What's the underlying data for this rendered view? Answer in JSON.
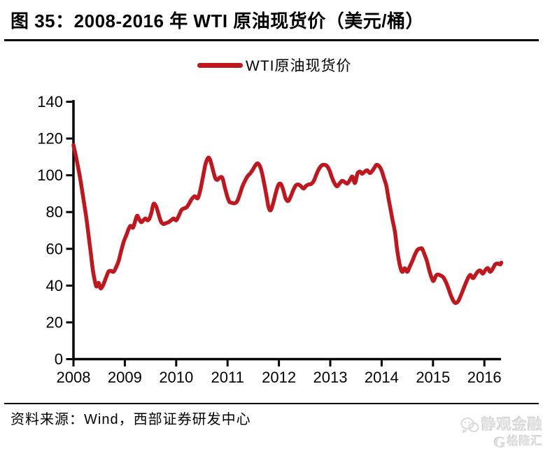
{
  "header": {
    "title": "图 35：2008-2016 年 WTI 原油现货价（美元/桶）"
  },
  "legend": {
    "series_label": "WTI原油现货价",
    "swatch_color": "#C0161E"
  },
  "footer": {
    "source": "资料来源：Wind，西部证券研发中心"
  },
  "watermark": {
    "brand": "静观金融",
    "logo_letter": "G",
    "platform": "格隆汇"
  },
  "chart_data": {
    "type": "line",
    "title": "2008-2016 年 WTI 原油现货价（美元/桶）",
    "xlabel": "",
    "ylabel": "",
    "unit": "美元/桶",
    "grid": false,
    "legend_position": "top-center",
    "x_ticks": [
      2008,
      2009,
      2010,
      2011,
      2012,
      2013,
      2014,
      2015,
      2016
    ],
    "y_ticks": [
      0,
      20,
      40,
      60,
      80,
      100,
      120,
      140
    ],
    "ylim": [
      0,
      140
    ],
    "xlim": [
      2008,
      2016.4
    ],
    "axis_color": "#000000",
    "series": [
      {
        "name": "WTI原油现货价",
        "color": "#C0161E",
        "points": [
          [
            2008.0,
            116.5
          ],
          [
            2008.05,
            110
          ],
          [
            2008.1,
            103
          ],
          [
            2008.15,
            95
          ],
          [
            2008.2,
            86
          ],
          [
            2008.25,
            77
          ],
          [
            2008.3,
            66
          ],
          [
            2008.34,
            57
          ],
          [
            2008.38,
            48
          ],
          [
            2008.42,
            42
          ],
          [
            2008.45,
            39.5
          ],
          [
            2008.49,
            41.5
          ],
          [
            2008.53,
            38.5
          ],
          [
            2008.58,
            40.5
          ],
          [
            2008.63,
            44
          ],
          [
            2008.68,
            47.5
          ],
          [
            2008.73,
            48
          ],
          [
            2008.78,
            47.5
          ],
          [
            2008.83,
            50
          ],
          [
            2008.88,
            53.5
          ],
          [
            2008.93,
            59
          ],
          [
            2008.98,
            64
          ],
          [
            2009.03,
            67.5
          ],
          [
            2009.07,
            70.5
          ],
          [
            2009.11,
            72.5
          ],
          [
            2009.16,
            71.5
          ],
          [
            2009.2,
            75
          ],
          [
            2009.24,
            78
          ],
          [
            2009.28,
            76
          ],
          [
            2009.32,
            74.5
          ],
          [
            2009.36,
            75.5
          ],
          [
            2009.4,
            76.5
          ],
          [
            2009.44,
            75.5
          ],
          [
            2009.48,
            76.5
          ],
          [
            2009.52,
            80
          ],
          [
            2009.56,
            84.5
          ],
          [
            2009.61,
            83
          ],
          [
            2009.65,
            79.5
          ],
          [
            2009.7,
            75
          ],
          [
            2009.75,
            73.5
          ],
          [
            2009.8,
            74
          ],
          [
            2009.85,
            74.5
          ],
          [
            2009.9,
            75.5
          ],
          [
            2009.95,
            76.5
          ],
          [
            2010.0,
            75.5
          ],
          [
            2010.05,
            78
          ],
          [
            2010.1,
            81
          ],
          [
            2010.15,
            82
          ],
          [
            2010.2,
            82.5
          ],
          [
            2010.25,
            84.5
          ],
          [
            2010.3,
            87
          ],
          [
            2010.36,
            88.6
          ],
          [
            2010.42,
            87.5
          ],
          [
            2010.47,
            92
          ],
          [
            2010.52,
            99
          ],
          [
            2010.57,
            106
          ],
          [
            2010.62,
            109.5
          ],
          [
            2010.66,
            108.5
          ],
          [
            2010.71,
            103.5
          ],
          [
            2010.76,
            98.5
          ],
          [
            2010.8,
            97.5
          ],
          [
            2010.85,
            98.8
          ],
          [
            2010.9,
            98.5
          ],
          [
            2010.95,
            93
          ],
          [
            2011.0,
            88
          ],
          [
            2011.04,
            85.5
          ],
          [
            2011.09,
            85
          ],
          [
            2011.14,
            84.8
          ],
          [
            2011.19,
            86
          ],
          [
            2011.24,
            89.8
          ],
          [
            2011.29,
            94
          ],
          [
            2011.34,
            97
          ],
          [
            2011.39,
            99.5
          ],
          [
            2011.44,
            101
          ],
          [
            2011.49,
            103
          ],
          [
            2011.54,
            105.3
          ],
          [
            2011.58,
            106.5
          ],
          [
            2011.62,
            105.5
          ],
          [
            2011.66,
            102.5
          ],
          [
            2011.71,
            96
          ],
          [
            2011.76,
            88.5
          ],
          [
            2011.8,
            82.5
          ],
          [
            2011.84,
            81
          ],
          [
            2011.89,
            85
          ],
          [
            2011.94,
            90.5
          ],
          [
            2011.99,
            94.8
          ],
          [
            2012.04,
            95.2
          ],
          [
            2012.09,
            91.5
          ],
          [
            2012.13,
            87.5
          ],
          [
            2012.18,
            86
          ],
          [
            2012.23,
            88.5
          ],
          [
            2012.28,
            92
          ],
          [
            2012.33,
            94.5
          ],
          [
            2012.38,
            95
          ],
          [
            2012.43,
            94
          ],
          [
            2012.48,
            92.8
          ],
          [
            2012.53,
            94.3
          ],
          [
            2012.58,
            95
          ],
          [
            2012.63,
            95.3
          ],
          [
            2012.68,
            97
          ],
          [
            2012.73,
            100.5
          ],
          [
            2012.78,
            103.5
          ],
          [
            2012.83,
            105.3
          ],
          [
            2012.88,
            105.7
          ],
          [
            2012.93,
            105.2
          ],
          [
            2012.98,
            103
          ],
          [
            2013.03,
            99
          ],
          [
            2013.08,
            95.8
          ],
          [
            2013.13,
            94
          ],
          [
            2013.18,
            95.5
          ],
          [
            2013.23,
            97
          ],
          [
            2013.28,
            96.3
          ],
          [
            2013.33,
            95.5
          ],
          [
            2013.38,
            97.3
          ],
          [
            2013.43,
            99.3
          ],
          [
            2013.48,
            95.8
          ],
          [
            2013.53,
            101
          ],
          [
            2013.58,
            102
          ],
          [
            2013.62,
            100.8
          ],
          [
            2013.67,
            102
          ],
          [
            2013.72,
            102.7
          ],
          [
            2013.77,
            101.2
          ],
          [
            2013.82,
            102.5
          ],
          [
            2013.87,
            104.6
          ],
          [
            2013.9,
            105.7
          ],
          [
            2013.95,
            105
          ],
          [
            2014.0,
            102.5
          ],
          [
            2014.05,
            98
          ],
          [
            2014.09,
            94.5
          ],
          [
            2014.13,
            88
          ],
          [
            2014.17,
            82
          ],
          [
            2014.21,
            76
          ],
          [
            2014.26,
            69
          ],
          [
            2014.3,
            60
          ],
          [
            2014.34,
            53
          ],
          [
            2014.38,
            48.5
          ],
          [
            2014.41,
            47.5
          ],
          [
            2014.45,
            49.4
          ],
          [
            2014.5,
            47.5
          ],
          [
            2014.55,
            50.5
          ],
          [
            2014.6,
            53.5
          ],
          [
            2014.65,
            57
          ],
          [
            2014.7,
            59.5
          ],
          [
            2014.75,
            60.2
          ],
          [
            2014.79,
            60
          ],
          [
            2014.84,
            56.5
          ],
          [
            2014.88,
            53.5
          ],
          [
            2014.93,
            48
          ],
          [
            2014.97,
            44.5
          ],
          [
            2015.01,
            42.5
          ],
          [
            2015.06,
            45.5
          ],
          [
            2015.1,
            46
          ],
          [
            2015.15,
            45.5
          ],
          [
            2015.2,
            44.5
          ],
          [
            2015.25,
            42
          ],
          [
            2015.3,
            38.5
          ],
          [
            2015.35,
            34.5
          ],
          [
            2015.4,
            31.5
          ],
          [
            2015.44,
            30.5
          ],
          [
            2015.49,
            31.5
          ],
          [
            2015.54,
            34.5
          ],
          [
            2015.59,
            38
          ],
          [
            2015.64,
            41.5
          ],
          [
            2015.69,
            44.5
          ],
          [
            2015.73,
            45.8
          ],
          [
            2015.78,
            44
          ],
          [
            2015.83,
            46
          ],
          [
            2015.88,
            47.8
          ],
          [
            2015.92,
            48.2
          ],
          [
            2015.97,
            46.5
          ],
          [
            2016.02,
            48.5
          ],
          [
            2016.07,
            49.5
          ],
          [
            2016.11,
            47.5
          ],
          [
            2016.16,
            49
          ],
          [
            2016.21,
            51.5
          ],
          [
            2016.26,
            52
          ],
          [
            2016.31,
            51.5
          ],
          [
            2016.33,
            52.5
          ]
        ]
      }
    ]
  }
}
